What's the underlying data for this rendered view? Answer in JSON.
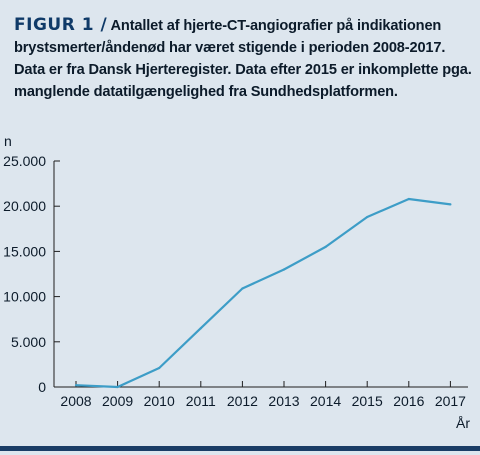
{
  "caption": {
    "label": "FIGUR 1 /",
    "text": "Antallet af hjerte-CT-angiografier på indikationen brystsmerter/åndenød har været stigende i perioden 2008-2017. Data er fra Dansk Hjerteregister. Data efter 2015 er inkomplette pga. manglende datatilgængelighed fra Sundhedsplatformen."
  },
  "colors": {
    "line": "#3d9dc7",
    "axis": "#1f1f1f",
    "background": "#dde6ee",
    "accent": "#1a3d66"
  },
  "chart_data": {
    "type": "line",
    "x": [
      2008,
      2009,
      2010,
      2011,
      2012,
      2013,
      2014,
      2015,
      2016,
      2017
    ],
    "tick_labels_x": [
      "2008",
      "2009",
      "2010",
      "2011",
      "2012",
      "2013",
      "2014",
      "2015",
      "2016",
      "2017"
    ],
    "values": [
      200,
      0,
      2100,
      6500,
      10900,
      13000,
      15500,
      18800,
      20800,
      20200
    ],
    "ylim": [
      0,
      25000
    ],
    "yticks": [
      0,
      5000,
      10000,
      15000,
      20000,
      25000
    ],
    "tick_labels_y": [
      "0",
      "5.000",
      "10.000",
      "15.000",
      "20.000",
      "25.000"
    ],
    "ylabel": "n",
    "xlabel": "År",
    "grid": false,
    "legend": "none"
  }
}
